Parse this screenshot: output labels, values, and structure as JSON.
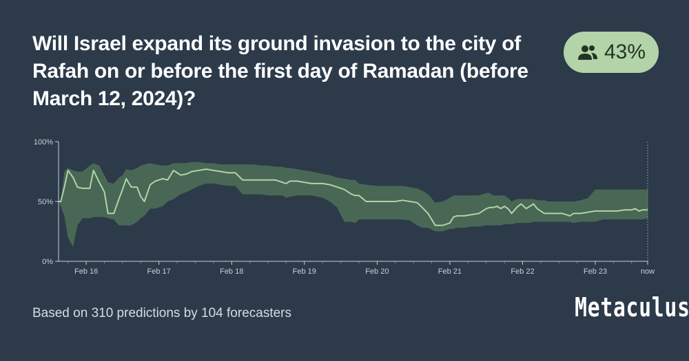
{
  "question": {
    "title": "Will Israel expand its ground invasion to the city of Rafah on or before the first day of Ramadan (before March 12, 2024)?"
  },
  "badge": {
    "value": "43%",
    "icon": "users-icon"
  },
  "footer": {
    "text": "Based on 310 predictions by 104 forecasters"
  },
  "brand": {
    "logo_text": "Metaculus"
  },
  "colors": {
    "background": "#2c3a4a",
    "band": "#4a6a55",
    "line": "#b3d3a8",
    "badge": "#b3d3a8"
  },
  "chart_data": {
    "type": "area",
    "x_ticks": [
      "Feb 16",
      "Feb 17",
      "Feb 18",
      "Feb 19",
      "Feb 20",
      "Feb 21",
      "Feb 22",
      "Feb 23",
      "now"
    ],
    "y_ticks": [
      "0%",
      "50%",
      "100%"
    ],
    "ylim": [
      0,
      100
    ],
    "xlim": [
      15.62,
      23.72
    ],
    "series": [
      {
        "x": [
          15.62,
          15.65,
          15.7,
          15.75,
          15.82,
          15.88,
          15.95,
          16.05,
          16.1,
          16.18,
          16.25,
          16.3,
          16.38,
          16.45,
          16.5,
          16.55,
          16.62,
          16.7,
          16.75,
          16.8,
          16.88,
          16.95,
          17.05,
          17.12,
          17.2,
          17.3,
          17.38,
          17.45,
          17.55,
          17.65,
          17.75,
          17.85,
          17.95,
          18.05,
          18.15,
          18.25,
          18.3,
          18.4,
          18.5,
          18.6,
          18.7,
          18.75,
          18.8,
          18.9,
          19.0,
          19.1,
          19.25,
          19.35,
          19.45,
          19.55,
          19.65,
          19.7,
          19.75,
          19.85,
          20.0,
          20.15,
          20.25,
          20.35,
          20.45,
          20.55,
          20.62,
          20.7,
          20.8,
          20.9,
          21.0,
          21.05,
          21.1,
          21.2,
          21.3,
          21.4,
          21.5,
          21.55,
          21.6,
          21.65,
          21.7,
          21.75,
          21.8,
          21.85,
          21.92,
          21.98,
          22.05,
          22.1,
          22.15,
          22.2,
          22.25,
          22.3,
          22.35,
          22.45,
          22.55,
          22.65,
          22.7,
          22.8,
          22.9,
          23.0,
          23.1,
          23.2,
          23.3,
          23.4,
          23.5,
          23.55,
          23.6,
          23.65,
          23.72
        ],
        "median": [
          50,
          50,
          62,
          76,
          70,
          62,
          61,
          61,
          76,
          66,
          58,
          40,
          40,
          52,
          60,
          69,
          62,
          62,
          54,
          50,
          64,
          67,
          69,
          68,
          76,
          72,
          73,
          75,
          76,
          77,
          76,
          75,
          74,
          74,
          68,
          68,
          68,
          68,
          68,
          68,
          66,
          65,
          67,
          67,
          66,
          65,
          65,
          64,
          62,
          60,
          56,
          55,
          55,
          50,
          50,
          50,
          50,
          51,
          50,
          49,
          45,
          40,
          30,
          30,
          32,
          37,
          38,
          38,
          39,
          40,
          44,
          45,
          45,
          46,
          44,
          46,
          44,
          40,
          45,
          48,
          44,
          46,
          48,
          44,
          42,
          40,
          40,
          40,
          40,
          38,
          40,
          40,
          41,
          42,
          42,
          42,
          42,
          43,
          43,
          44,
          42,
          43,
          43
        ],
        "upper": [
          50,
          50,
          75,
          78,
          76,
          75,
          75,
          80,
          82,
          80,
          72,
          66,
          65,
          70,
          72,
          77,
          76,
          78,
          80,
          81,
          82,
          81,
          80,
          80,
          82,
          82,
          82,
          83,
          83,
          82,
          82,
          81,
          81,
          81,
          81,
          81,
          81,
          80,
          80,
          79,
          79,
          78,
          78,
          77,
          76,
          75,
          73,
          72,
          70,
          69,
          68,
          68,
          65,
          64,
          63,
          63,
          63,
          63,
          62,
          61,
          59,
          56,
          49,
          50,
          53,
          55,
          55,
          55,
          55,
          55,
          57,
          57,
          55,
          55,
          55,
          55,
          53,
          50,
          52,
          52,
          52,
          52,
          52,
          51,
          51,
          51,
          50,
          50,
          50,
          50,
          50,
          51,
          53,
          60,
          60,
          60,
          60,
          60,
          60,
          60,
          60,
          60,
          60
        ],
        "lower": [
          50,
          46,
          38,
          20,
          12,
          30,
          36,
          36,
          37,
          37,
          37,
          36,
          35,
          30,
          30,
          30,
          30,
          33,
          36,
          38,
          44,
          44,
          46,
          50,
          52,
          56,
          58,
          60,
          63,
          65,
          65,
          64,
          63,
          63,
          56,
          56,
          56,
          56,
          55,
          55,
          55,
          53,
          54,
          55,
          55,
          55,
          53,
          50,
          45,
          33,
          33,
          32,
          35,
          35,
          35,
          35,
          35,
          35,
          34,
          30,
          28,
          28,
          25,
          25,
          27,
          27,
          28,
          28,
          29,
          29,
          30,
          30,
          30,
          30,
          30,
          31,
          31,
          31,
          32,
          32,
          32,
          32,
          33,
          33,
          33,
          33,
          33,
          33,
          33,
          33,
          32,
          33,
          33,
          33,
          35,
          35,
          35,
          35,
          35,
          35,
          35,
          35,
          36
        ]
      }
    ]
  }
}
